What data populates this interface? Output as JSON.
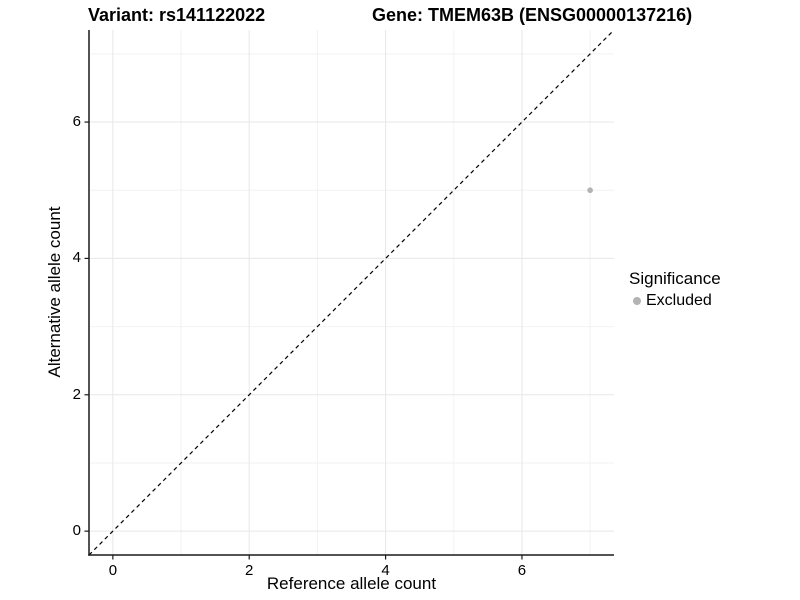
{
  "chart_data": {
    "type": "scatter",
    "title_left": "Variant: rs141122022",
    "title_right": "Gene: TMEM63B (ENSG00000137216)",
    "xlabel": "Reference allele count",
    "ylabel": "Alternative allele count",
    "xlim": [
      -0.35,
      7.35
    ],
    "ylim": [
      -0.35,
      7.35
    ],
    "x_ticks": [
      0,
      2,
      4,
      6
    ],
    "y_ticks": [
      0,
      2,
      4,
      6
    ],
    "x_minor_gridlines": [
      1,
      3,
      5,
      7
    ],
    "y_minor_gridlines": [
      1,
      3,
      5,
      7
    ],
    "grid": true,
    "legend_position": "right",
    "series": [
      {
        "name": "Excluded",
        "color": "#b3b3b3",
        "points": [
          {
            "x": 7,
            "y": 5
          }
        ]
      }
    ],
    "reference_line": {
      "type": "identity",
      "slope": 1,
      "intercept": 0,
      "style": "dashed",
      "color": "#000000"
    }
  },
  "legend": {
    "title": "Significance",
    "items": [
      {
        "label": "Excluded",
        "color": "#b3b3b3"
      }
    ]
  },
  "colors": {
    "background": "#ffffff",
    "grid_major": "#e7e7e7",
    "grid_minor": "#f2f2f2",
    "axis_line": "#1a1a1a",
    "tick_mark": "#1a1a1a",
    "point": "#b3b3b3",
    "dashed_line": "#000000"
  }
}
